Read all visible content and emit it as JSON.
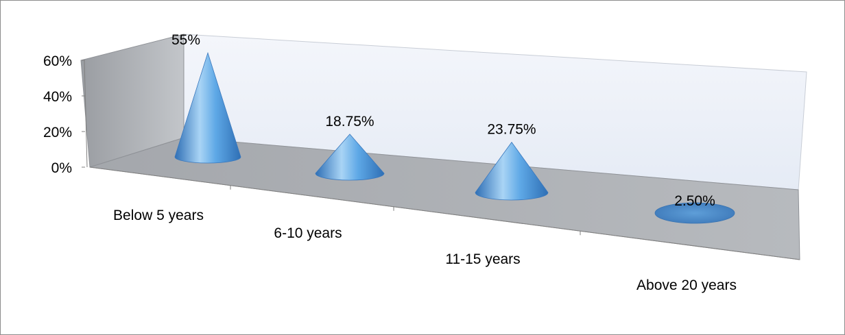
{
  "chart_data": {
    "type": "bar",
    "shape": "cone",
    "three_d": true,
    "categories": [
      "Below 5 years",
      "6-10 years",
      "11-15 years",
      "Above 20 years"
    ],
    "values": [
      55,
      18.75,
      23.75,
      2.5
    ],
    "data_labels": [
      "55%",
      "18.75%",
      "23.75%",
      "2.50%"
    ],
    "y_ticks": [
      "0%",
      "20%",
      "40%",
      "60%"
    ],
    "ylim": [
      0,
      60
    ],
    "y_unit": "%",
    "title": "",
    "xlabel": "",
    "ylabel": "",
    "legend": "none",
    "grid": false,
    "colors": {
      "cone_light": "#a9d4f5",
      "cone_mid": "#5ea8e6",
      "cone_dark": "#2f6fb5",
      "back_wall": "#eef2f9",
      "side_wall": "#9ea1a6",
      "floor": "#a9acb1"
    }
  }
}
